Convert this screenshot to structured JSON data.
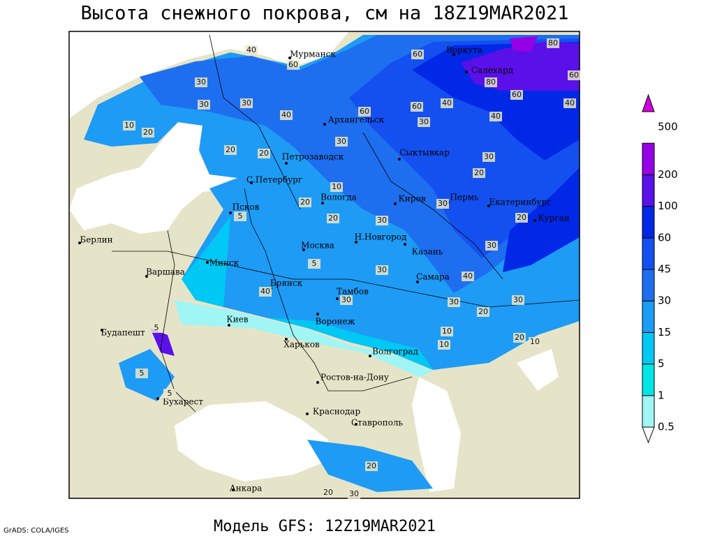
{
  "title": "Высота снежного покрова, см на 18Z19MAR2021",
  "footer": "Модель GFS: 12Z19MAR2021",
  "credit": "GrADS: COLA/IGES",
  "legend": {
    "levels": [
      0.5,
      1,
      5,
      15,
      30,
      45,
      60,
      100,
      200,
      500
    ],
    "colors": [
      "#ffffff",
      "#a0f5f5",
      "#00e6e6",
      "#00c8f5",
      "#1e9bf5",
      "#1e6ef0",
      "#1450f0",
      "#0028e6",
      "#5a10e8",
      "#9600e6",
      "#d200dc"
    ]
  },
  "cities": [
    "Мурманск",
    "Воркута",
    "Салехард",
    "Архангельск",
    "Сыктывкар",
    "Петрозаводск",
    "С.Петербург",
    "Вологда",
    "Киров",
    "Пермь",
    "Екатеринбург",
    "Псков",
    "Курган",
    "Берлин",
    "Н.Новгород",
    "Москва",
    "Казань",
    "Минск",
    "Варшава",
    "Самара",
    "Брянск",
    "Тамбов",
    "Киев",
    "Воронеж",
    "Харьков",
    "Будапешт",
    "Волгоград",
    "Ростов-на-Дону",
    "Бухарест",
    "Краснодар",
    "Ставрополь",
    "Анкара"
  ],
  "contour_labels": [
    40,
    60,
    80,
    60,
    30,
    30,
    30,
    60,
    80,
    60,
    20,
    40,
    20,
    10,
    20,
    60,
    30,
    60,
    40,
    40,
    30,
    40,
    30,
    20,
    20,
    20,
    10,
    30,
    30,
    20,
    30,
    40,
    30,
    30,
    40,
    5,
    5,
    10,
    30,
    20,
    20,
    10,
    10,
    5,
    5,
    5,
    20,
    20,
    30,
    30
  ]
}
